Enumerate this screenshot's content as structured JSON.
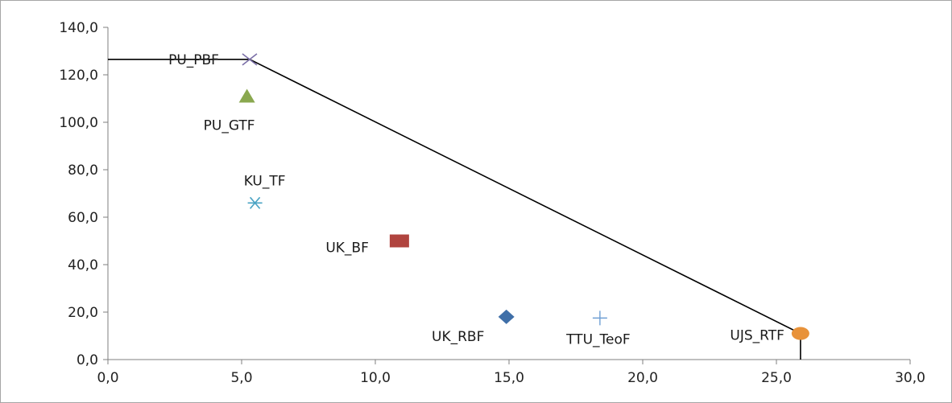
{
  "chart_data": {
    "type": "scatter",
    "title": "",
    "xlabel": "",
    "ylabel": "",
    "xlim": [
      0,
      30
    ],
    "ylim": [
      0,
      140
    ],
    "grid": false,
    "legend": "none",
    "x_ticks": [
      "0,0",
      "5,0",
      "10,0",
      "15,0",
      "20,0",
      "25,0",
      "30,0"
    ],
    "y_ticks": [
      "0,0",
      "20,0",
      "40,0",
      "60,0",
      "80,0",
      "100,0",
      "120,0",
      "140,0"
    ],
    "points": [
      {
        "label": "PU_PBF",
        "x": 5.3,
        "y": 126.5,
        "marker": "x",
        "color": "#7b6fa8"
      },
      {
        "label": "PU_GTF",
        "x": 5.2,
        "y": 111.0,
        "marker": "triangle",
        "color": "#8aa84f"
      },
      {
        "label": "KU_TF",
        "x": 5.5,
        "y": 66.0,
        "marker": "asterisk",
        "color": "#4aa3c4"
      },
      {
        "label": "UK_BF",
        "x": 10.9,
        "y": 50.0,
        "marker": "square",
        "color": "#b0443f"
      },
      {
        "label": "UK_RBF",
        "x": 14.9,
        "y": 18.0,
        "marker": "diamond",
        "color": "#3f6fa8"
      },
      {
        "label": "TTU_TeoF",
        "x": 18.4,
        "y": 17.5,
        "marker": "plus",
        "color": "#6f9fd4"
      },
      {
        "label": "UJS_RTF",
        "x": 25.9,
        "y": 11.0,
        "marker": "circle",
        "color": "#e8923a"
      }
    ],
    "frontier": {
      "color": "#000000",
      "points": [
        [
          0,
          126.5
        ],
        [
          5.3,
          126.5
        ],
        [
          25.9,
          11.0
        ],
        [
          25.9,
          0
        ]
      ]
    }
  }
}
